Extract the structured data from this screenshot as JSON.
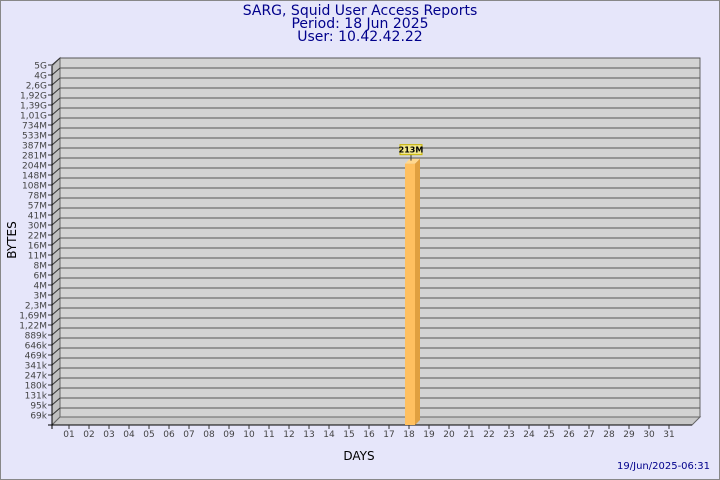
{
  "chart_data": {
    "type": "bar",
    "title": "SARG, Squid User Access Reports",
    "subtitle_lines": [
      "Period: 18 Jun 2025",
      "User: 10.42.42.22"
    ],
    "xlabel": "DAYS",
    "ylabel": "BYTES",
    "y_scale": "log",
    "grid": true,
    "y_tick_labels": [
      "5G",
      "4G",
      "2,6G",
      "1,92G",
      "1,39G",
      "1,01G",
      "734M",
      "533M",
      "387M",
      "281M",
      "204M",
      "148M",
      "108M",
      "78M",
      "57M",
      "41M",
      "30M",
      "22M",
      "16M",
      "11M",
      "8M",
      "6M",
      "4M",
      "3M",
      "2,3M",
      "1,69M",
      "1,22M",
      "889k",
      "646k",
      "469k",
      "341k",
      "247k",
      "180k",
      "131k",
      "95k",
      "69k"
    ],
    "categories": [
      "01",
      "02",
      "03",
      "04",
      "05",
      "06",
      "07",
      "08",
      "09",
      "10",
      "11",
      "12",
      "13",
      "14",
      "15",
      "16",
      "17",
      "18",
      "19",
      "20",
      "21",
      "22",
      "23",
      "24",
      "25",
      "26",
      "27",
      "28",
      "29",
      "30",
      "31"
    ],
    "bars": [
      {
        "day": "18",
        "value": 213000000,
        "label": "213M"
      }
    ],
    "colors": {
      "bar": "#ffc060",
      "bar_side": "#e0a040",
      "plot": "#d3d3d3",
      "title": "#00008b"
    }
  },
  "footer": "19/Jun/2025-06:31"
}
